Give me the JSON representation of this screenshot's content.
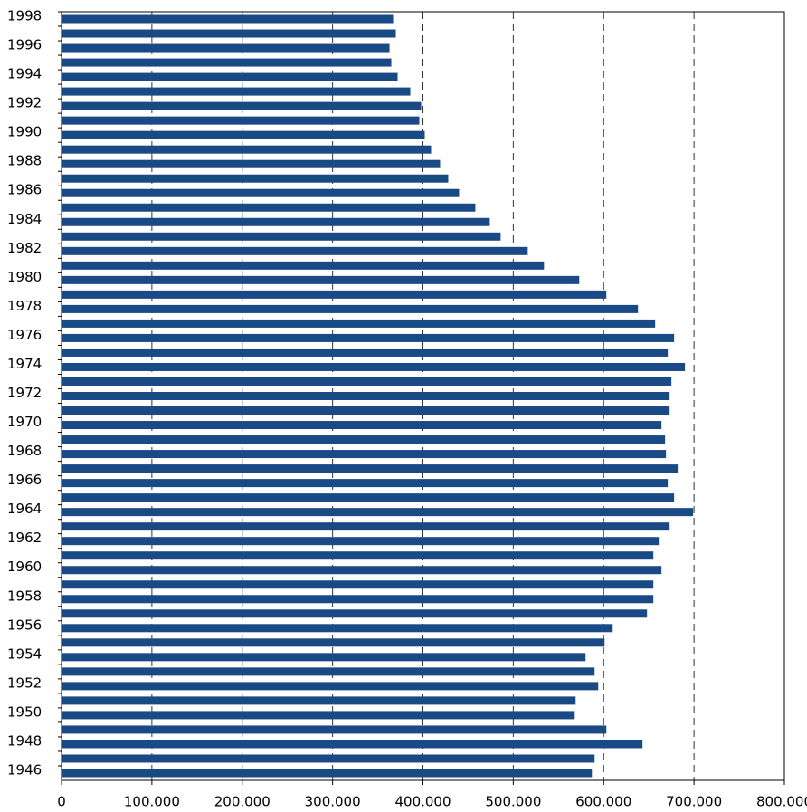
{
  "chart_data": {
    "type": "hbar",
    "categories": [
      "1998",
      null,
      "1996",
      null,
      "1994",
      null,
      "1992",
      null,
      "1990",
      null,
      "1988",
      null,
      "1986",
      null,
      "1984",
      null,
      "1982",
      null,
      "1980",
      null,
      "1978",
      null,
      "1976",
      null,
      "1974",
      null,
      "1972",
      null,
      "1970",
      null,
      "1968",
      null,
      "1966",
      null,
      "1964",
      null,
      "1962",
      null,
      "1960",
      null,
      "1958",
      null,
      "1956",
      null,
      "1954",
      null,
      "1952",
      null,
      "1950",
      null,
      "1948",
      null,
      "1946"
    ],
    "values": [
      367000,
      370000,
      363000,
      365000,
      372000,
      386000,
      398000,
      396000,
      402000,
      409000,
      419000,
      428000,
      440000,
      458000,
      474000,
      486000,
      516000,
      534000,
      573000,
      603000,
      638000,
      657000,
      678000,
      671000,
      690000,
      675000,
      673000,
      673000,
      664000,
      668000,
      669000,
      682000,
      671000,
      678000,
      699000,
      673000,
      661000,
      655000,
      664000,
      655000,
      655000,
      648000,
      610000,
      601000,
      580000,
      590000,
      594000,
      569000,
      568000,
      603000,
      643000,
      590000,
      587000
    ],
    "color": "#1a4a85",
    "xlim": [
      0,
      800000
    ],
    "xticks": [
      0,
      {
        "value": 100000,
        "label": "100.000"
      },
      {
        "value": 200000,
        "label": "200.000"
      },
      {
        "value": 300000,
        "label": "300.000"
      },
      {
        "value": 400000,
        "label": "400.000"
      },
      {
        "value": 500000,
        "label": "500.000"
      },
      {
        "value": 600000,
        "label": "600.000"
      },
      {
        "value": 700000,
        "label": "700.000"
      },
      {
        "value": 800000,
        "label": "800.000"
      }
    ],
    "grid": true
  }
}
